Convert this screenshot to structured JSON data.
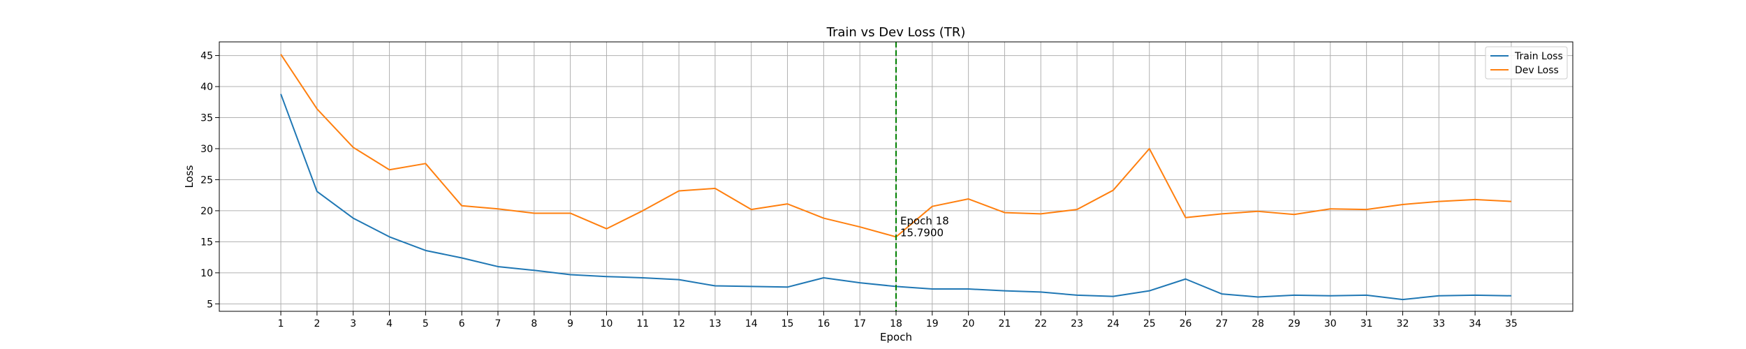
{
  "chart_data": {
    "type": "line",
    "title": "Train vs Dev Loss (TR)",
    "xlabel": "Epoch",
    "ylabel": "Loss",
    "x": [
      1,
      2,
      3,
      4,
      5,
      6,
      7,
      8,
      9,
      10,
      11,
      12,
      13,
      14,
      15,
      16,
      17,
      18,
      19,
      20,
      21,
      22,
      23,
      24,
      25,
      26,
      27,
      28,
      29,
      30,
      31,
      32,
      33,
      34,
      35
    ],
    "xlim": [
      -0.7,
      36.7
    ],
    "ylim": [
      3.8,
      47.2
    ],
    "yticks": [
      5,
      10,
      15,
      20,
      25,
      30,
      35,
      40,
      45
    ],
    "grid": true,
    "legend_position": "top-right",
    "series": [
      {
        "name": "Train Loss",
        "color": "#1f77b4",
        "values": [
          38.8,
          23.1,
          18.8,
          15.8,
          13.6,
          12.4,
          11.0,
          10.4,
          9.7,
          9.4,
          9.2,
          8.9,
          7.9,
          7.8,
          7.7,
          9.2,
          8.4,
          7.8,
          7.4,
          7.4,
          7.1,
          6.9,
          6.4,
          6.2,
          7.1,
          9.0,
          6.6,
          6.1,
          6.4,
          6.3,
          6.4,
          5.7,
          6.3,
          6.4,
          6.3
        ]
      },
      {
        "name": "Dev Loss",
        "color": "#ff7f0e",
        "values": [
          45.2,
          36.4,
          30.2,
          26.6,
          27.6,
          20.8,
          20.3,
          19.6,
          19.6,
          17.1,
          20.0,
          23.2,
          23.6,
          20.2,
          21.1,
          18.8,
          17.4,
          15.79,
          20.7,
          21.9,
          19.7,
          19.5,
          20.2,
          23.3,
          30.0,
          18.9,
          19.5,
          19.9,
          19.4,
          20.3,
          20.2,
          21.0,
          21.5,
          21.8,
          21.5
        ]
      }
    ],
    "marker_line": {
      "x": 18,
      "color": "#008000",
      "style": "dashed"
    },
    "annotation": {
      "x": 18,
      "y": 15.79,
      "line1": "Epoch 18",
      "line2": "15.7900"
    }
  }
}
